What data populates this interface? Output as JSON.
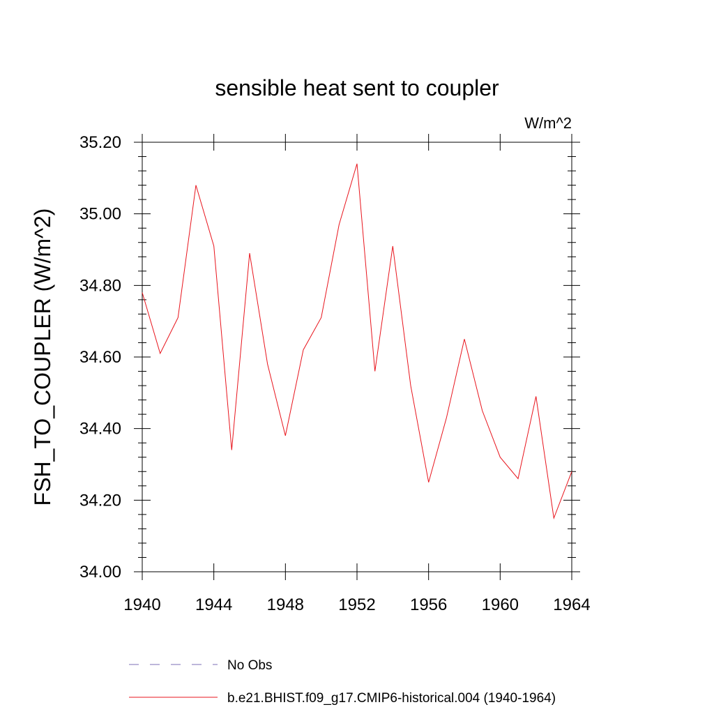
{
  "chart_data": {
    "type": "line",
    "title": "sensible heat sent to coupler",
    "units_label": "W/m^2",
    "ylabel": "FSH_TO_COUPLER  (W/m^2)",
    "xlabel": "",
    "xlim": [
      1940,
      1964
    ],
    "ylim": [
      34.0,
      35.2
    ],
    "x_ticks": [
      1940,
      1944,
      1948,
      1952,
      1956,
      1960,
      1964
    ],
    "x_tick_labels": [
      "1940",
      "1944",
      "1948",
      "1952",
      "1956",
      "1960",
      "1964"
    ],
    "y_ticks": [
      34.0,
      34.2,
      34.4,
      34.6,
      34.8,
      35.0,
      35.2
    ],
    "y_tick_labels": [
      "34.00",
      "34.20",
      "34.40",
      "34.60",
      "34.80",
      "35.00",
      "35.20"
    ],
    "grid": false,
    "legend_position": "bottom",
    "series": [
      {
        "name": "b.e21.BHIST.f09_g17.CMIP6-historical.004 (1940-1964)",
        "color": "#e8141c",
        "dash": "solid",
        "x": [
          1940,
          1941,
          1942,
          1943,
          1944,
          1945,
          1946,
          1947,
          1948,
          1949,
          1950,
          1951,
          1952,
          1953,
          1954,
          1955,
          1956,
          1957,
          1958,
          1959,
          1960,
          1961,
          1962,
          1963,
          1964
        ],
        "values": [
          34.78,
          34.61,
          34.71,
          35.08,
          34.91,
          34.34,
          34.89,
          34.58,
          34.38,
          34.62,
          34.71,
          34.97,
          35.14,
          34.56,
          34.91,
          34.52,
          34.25,
          34.43,
          34.65,
          34.45,
          34.32,
          34.26,
          34.49,
          34.15,
          34.28
        ]
      }
    ],
    "legend": [
      {
        "label": "No Obs",
        "color": "#7b6fb5",
        "dash": "dashed"
      },
      {
        "label": "b.e21.BHIST.f09_g17.CMIP6-historical.004 (1940-1964)",
        "color": "#e8141c",
        "dash": "solid"
      }
    ]
  }
}
